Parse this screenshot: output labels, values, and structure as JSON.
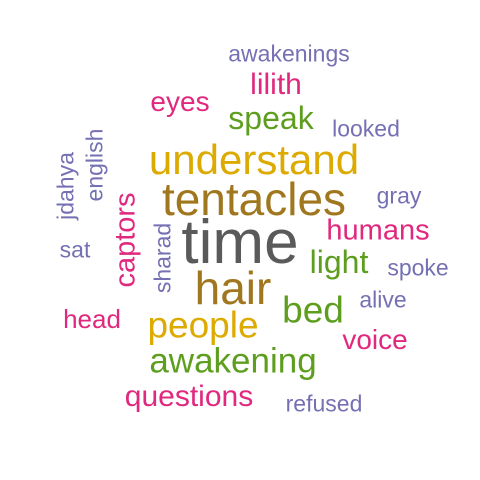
{
  "colors": {
    "dark": "#5a5a5a",
    "brown": "#a0771f",
    "gold": "#dcaa00",
    "green": "#5e9e1f",
    "pink": "#e0297e",
    "purple": "#7570b3"
  },
  "words": [
    {
      "text": "time",
      "color": "dark"
    },
    {
      "text": "tentacles",
      "color": "brown"
    },
    {
      "text": "understand",
      "color": "gold"
    },
    {
      "text": "hair",
      "color": "brown"
    },
    {
      "text": "people",
      "color": "gold"
    },
    {
      "text": "awakening",
      "color": "green"
    },
    {
      "text": "bed",
      "color": "green"
    },
    {
      "text": "speak",
      "color": "green"
    },
    {
      "text": "light",
      "color": "green"
    },
    {
      "text": "humans",
      "color": "pink"
    },
    {
      "text": "questions",
      "color": "pink"
    },
    {
      "text": "lilith",
      "color": "pink"
    },
    {
      "text": "eyes",
      "color": "pink"
    },
    {
      "text": "captors",
      "color": "pink"
    },
    {
      "text": "voice",
      "color": "pink"
    },
    {
      "text": "head",
      "color": "pink"
    },
    {
      "text": "awakenings",
      "color": "purple"
    },
    {
      "text": "looked",
      "color": "purple"
    },
    {
      "text": "gray",
      "color": "purple"
    },
    {
      "text": "spoke",
      "color": "purple"
    },
    {
      "text": "alive",
      "color": "purple"
    },
    {
      "text": "refused",
      "color": "purple"
    },
    {
      "text": "sat",
      "color": "purple"
    },
    {
      "text": "sharad",
      "color": "purple"
    },
    {
      "text": "english",
      "color": "purple"
    },
    {
      "text": "jdahya",
      "color": "purple"
    }
  ]
}
